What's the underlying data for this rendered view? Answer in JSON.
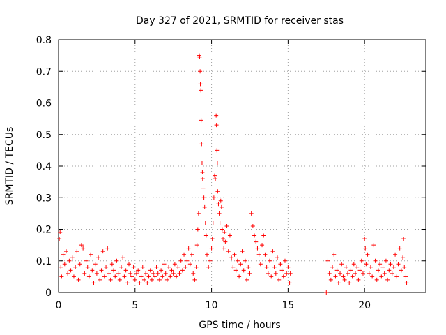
{
  "chart_data": {
    "type": "scatter",
    "title": "Day 327 of 2021, SRMTID for receiver stas",
    "xlabel": "GPS time / hours",
    "ylabel": "SRMTID / TECUs",
    "xlim": [
      0,
      24
    ],
    "ylim": [
      0,
      0.8
    ],
    "xticks": [
      0,
      5,
      10,
      15,
      20
    ],
    "xtick_labels": [
      "0",
      "5",
      "10",
      "15",
      "20"
    ],
    "yticks": [
      0,
      0.1,
      0.2,
      0.3,
      0.4,
      0.5,
      0.6,
      0.7,
      0.8
    ],
    "ytick_labels": [
      "0",
      "0.1",
      "0.2",
      "0.3",
      "0.4",
      "0.5",
      "0.6",
      "0.7",
      "0.8"
    ],
    "grid": true,
    "marker": "plus",
    "color": "#ff0000",
    "series": [
      {
        "name": "SRMTID",
        "points": [
          [
            0.05,
            0.17
          ],
          [
            0.1,
            0.19
          ],
          [
            0.15,
            0.08
          ],
          [
            0.2,
            0.05
          ],
          [
            0.3,
            0.12
          ],
          [
            0.4,
            0.09
          ],
          [
            0.5,
            0.13
          ],
          [
            0.6,
            0.06
          ],
          [
            0.7,
            0.1
          ],
          [
            0.8,
            0.07
          ],
          [
            0.9,
            0.11
          ],
          [
            1.0,
            0.05
          ],
          [
            1.1,
            0.08
          ],
          [
            1.2,
            0.13
          ],
          [
            1.3,
            0.04
          ],
          [
            1.4,
            0.09
          ],
          [
            1.5,
            0.15
          ],
          [
            1.6,
            0.14
          ],
          [
            1.7,
            0.06
          ],
          [
            1.8,
            0.1
          ],
          [
            1.9,
            0.08
          ],
          [
            2.0,
            0.05
          ],
          [
            2.1,
            0.12
          ],
          [
            2.2,
            0.07
          ],
          [
            2.3,
            0.03
          ],
          [
            2.4,
            0.09
          ],
          [
            2.5,
            0.06
          ],
          [
            2.6,
            0.11
          ],
          [
            2.7,
            0.04
          ],
          [
            2.8,
            0.07
          ],
          [
            2.9,
            0.13
          ],
          [
            3.0,
            0.05
          ],
          [
            3.1,
            0.08
          ],
          [
            3.2,
            0.14
          ],
          [
            3.3,
            0.06
          ],
          [
            3.4,
            0.04
          ],
          [
            3.5,
            0.09
          ],
          [
            3.6,
            0.07
          ],
          [
            3.7,
            0.05
          ],
          [
            3.8,
            0.1
          ],
          [
            3.9,
            0.06
          ],
          [
            4.0,
            0.04
          ],
          [
            4.1,
            0.08
          ],
          [
            4.2,
            0.11
          ],
          [
            4.3,
            0.05
          ],
          [
            4.4,
            0.07
          ],
          [
            4.5,
            0.03
          ],
          [
            4.6,
            0.09
          ],
          [
            4.7,
            0.06
          ],
          [
            4.8,
            0.05
          ],
          [
            4.9,
            0.08
          ],
          [
            5.0,
            0.04
          ],
          [
            5.1,
            0.06
          ],
          [
            5.2,
            0.07
          ],
          [
            5.3,
            0.03
          ],
          [
            5.4,
            0.05
          ],
          [
            5.5,
            0.08
          ],
          [
            5.6,
            0.04
          ],
          [
            5.7,
            0.06
          ],
          [
            5.8,
            0.03
          ],
          [
            5.9,
            0.05
          ],
          [
            6.0,
            0.07
          ],
          [
            6.1,
            0.04
          ],
          [
            6.2,
            0.06
          ],
          [
            6.3,
            0.05
          ],
          [
            6.4,
            0.08
          ],
          [
            6.5,
            0.06
          ],
          [
            6.6,
            0.04
          ],
          [
            6.7,
            0.07
          ],
          [
            6.8,
            0.05
          ],
          [
            6.9,
            0.09
          ],
          [
            7.0,
            0.06
          ],
          [
            7.1,
            0.04
          ],
          [
            7.2,
            0.08
          ],
          [
            7.3,
            0.05
          ],
          [
            7.4,
            0.07
          ],
          [
            7.5,
            0.06
          ],
          [
            7.6,
            0.09
          ],
          [
            7.7,
            0.05
          ],
          [
            7.8,
            0.08
          ],
          [
            7.9,
            0.06
          ],
          [
            8.0,
            0.1
          ],
          [
            8.1,
            0.07
          ],
          [
            8.2,
            0.12
          ],
          [
            8.3,
            0.08
          ],
          [
            8.4,
            0.1
          ],
          [
            8.5,
            0.14
          ],
          [
            8.6,
            0.09
          ],
          [
            8.7,
            0.12
          ],
          [
            8.8,
            0.06
          ],
          [
            8.9,
            0.04
          ],
          [
            9.0,
            0.08
          ],
          [
            9.05,
            0.15
          ],
          [
            9.1,
            0.2
          ],
          [
            9.15,
            0.25
          ],
          [
            9.2,
            0.75
          ],
          [
            9.22,
            0.745
          ],
          [
            9.25,
            0.7
          ],
          [
            9.27,
            0.66
          ],
          [
            9.3,
            0.64
          ],
          [
            9.32,
            0.545
          ],
          [
            9.35,
            0.47
          ],
          [
            9.38,
            0.41
          ],
          [
            9.4,
            0.38
          ],
          [
            9.42,
            0.36
          ],
          [
            9.45,
            0.33
          ],
          [
            9.5,
            0.3
          ],
          [
            9.55,
            0.27
          ],
          [
            9.6,
            0.22
          ],
          [
            9.65,
            0.18
          ],
          [
            9.7,
            0.12
          ],
          [
            9.8,
            0.08
          ],
          [
            9.9,
            0.1
          ],
          [
            10.0,
            0.14
          ],
          [
            10.05,
            0.17
          ],
          [
            10.1,
            0.22
          ],
          [
            10.15,
            0.3
          ],
          [
            10.2,
            0.37
          ],
          [
            10.25,
            0.36
          ],
          [
            10.3,
            0.56
          ],
          [
            10.32,
            0.53
          ],
          [
            10.35,
            0.45
          ],
          [
            10.38,
            0.41
          ],
          [
            10.4,
            0.32
          ],
          [
            10.45,
            0.28
          ],
          [
            10.5,
            0.25
          ],
          [
            10.55,
            0.22
          ],
          [
            10.6,
            0.29
          ],
          [
            10.65,
            0.27
          ],
          [
            10.7,
            0.2
          ],
          [
            10.75,
            0.17
          ],
          [
            10.8,
            0.14
          ],
          [
            10.85,
            0.19
          ],
          [
            10.9,
            0.16
          ],
          [
            11.0,
            0.21
          ],
          [
            11.1,
            0.13
          ],
          [
            11.2,
            0.18
          ],
          [
            11.3,
            0.11
          ],
          [
            11.4,
            0.08
          ],
          [
            11.5,
            0.12
          ],
          [
            11.6,
            0.07
          ],
          [
            11.7,
            0.1
          ],
          [
            11.8,
            0.05
          ],
          [
            11.9,
            0.09
          ],
          [
            12.0,
            0.13
          ],
          [
            12.1,
            0.07
          ],
          [
            12.2,
            0.1
          ],
          [
            12.3,
            0.04
          ],
          [
            12.4,
            0.08
          ],
          [
            12.5,
            0.06
          ],
          [
            12.6,
            0.25
          ],
          [
            12.7,
            0.21
          ],
          [
            12.8,
            0.18
          ],
          [
            12.9,
            0.16
          ],
          [
            13.0,
            0.14
          ],
          [
            13.1,
            0.12
          ],
          [
            13.2,
            0.09
          ],
          [
            13.3,
            0.15
          ],
          [
            13.4,
            0.18
          ],
          [
            13.5,
            0.12
          ],
          [
            13.6,
            0.08
          ],
          [
            13.7,
            0.06
          ],
          [
            13.8,
            0.1
          ],
          [
            13.9,
            0.05
          ],
          [
            14.0,
            0.13
          ],
          [
            14.1,
            0.08
          ],
          [
            14.2,
            0.06
          ],
          [
            14.3,
            0.11
          ],
          [
            14.4,
            0.04
          ],
          [
            14.5,
            0.09
          ],
          [
            14.6,
            0.07
          ],
          [
            14.7,
            0.05
          ],
          [
            14.8,
            0.1
          ],
          [
            14.9,
            0.06
          ],
          [
            15.0,
            0.08
          ],
          [
            15.1,
            0.03
          ],
          [
            15.15,
            0.06
          ],
          [
            17.5,
            0.0
          ],
          [
            17.6,
            0.1
          ],
          [
            17.7,
            0.06
          ],
          [
            17.8,
            0.04
          ],
          [
            17.9,
            0.08
          ],
          [
            18.0,
            0.12
          ],
          [
            18.1,
            0.05
          ],
          [
            18.2,
            0.07
          ],
          [
            18.3,
            0.03
          ],
          [
            18.4,
            0.06
          ],
          [
            18.5,
            0.09
          ],
          [
            18.6,
            0.05
          ],
          [
            18.7,
            0.04
          ],
          [
            18.8,
            0.08
          ],
          [
            18.9,
            0.06
          ],
          [
            19.0,
            0.03
          ],
          [
            19.1,
            0.07
          ],
          [
            19.2,
            0.05
          ],
          [
            19.3,
            0.09
          ],
          [
            19.4,
            0.06
          ],
          [
            19.5,
            0.08
          ],
          [
            19.6,
            0.04
          ],
          [
            19.7,
            0.07
          ],
          [
            19.8,
            0.1
          ],
          [
            19.9,
            0.06
          ],
          [
            20.0,
            0.17
          ],
          [
            20.05,
            0.14
          ],
          [
            20.1,
            0.09
          ],
          [
            20.2,
            0.12
          ],
          [
            20.3,
            0.06
          ],
          [
            20.4,
            0.08
          ],
          [
            20.5,
            0.05
          ],
          [
            20.6,
            0.15
          ],
          [
            20.7,
            0.1
          ],
          [
            20.8,
            0.04
          ],
          [
            20.9,
            0.07
          ],
          [
            21.0,
            0.09
          ],
          [
            21.1,
            0.05
          ],
          [
            21.2,
            0.08
          ],
          [
            21.3,
            0.06
          ],
          [
            21.4,
            0.1
          ],
          [
            21.5,
            0.04
          ],
          [
            21.6,
            0.07
          ],
          [
            21.7,
            0.09
          ],
          [
            21.8,
            0.06
          ],
          [
            21.9,
            0.08
          ],
          [
            22.0,
            0.12
          ],
          [
            22.1,
            0.05
          ],
          [
            22.2,
            0.09
          ],
          [
            22.3,
            0.14
          ],
          [
            22.4,
            0.07
          ],
          [
            22.5,
            0.11
          ],
          [
            22.55,
            0.17
          ],
          [
            22.6,
            0.08
          ],
          [
            22.7,
            0.05
          ],
          [
            22.75,
            0.03
          ]
        ]
      }
    ]
  }
}
